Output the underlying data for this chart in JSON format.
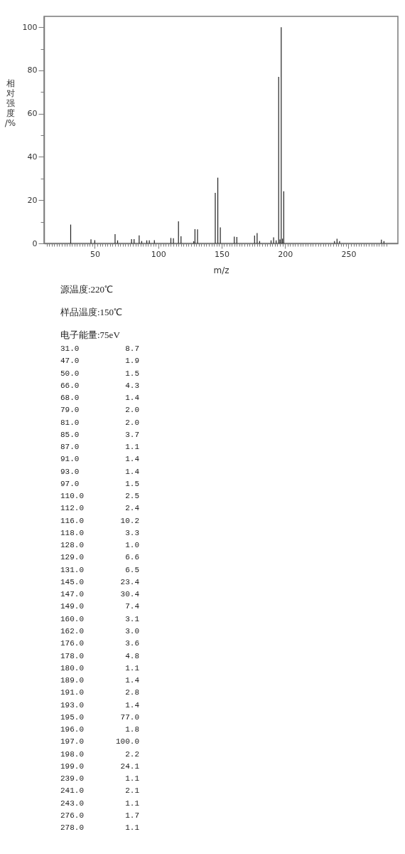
{
  "chart_data": [
    {
      "type": "bar",
      "xlabel": "m/z",
      "ylabel": "相对强度/%",
      "color": "#222222",
      "x": [
        31,
        47,
        50,
        66,
        68,
        79,
        81,
        85,
        87,
        91,
        93,
        97,
        110,
        112,
        116,
        118,
        128,
        129,
        131,
        145,
        147,
        149,
        160,
        162,
        176,
        178,
        180,
        189,
        191,
        193,
        195,
        196,
        197,
        198,
        199,
        239,
        241,
        243,
        276,
        278
      ],
      "values": [
        8.7,
        1.9,
        1.5,
        4.3,
        1.4,
        2.0,
        2.0,
        3.7,
        1.1,
        1.4,
        1.4,
        1.5,
        2.5,
        2.4,
        10.2,
        3.3,
        1.0,
        6.6,
        6.5,
        23.4,
        30.4,
        7.4,
        3.1,
        3.0,
        3.6,
        4.8,
        1.1,
        1.4,
        2.8,
        1.4,
        77.0,
        1.8,
        100.0,
        2.2,
        24.1,
        1.1,
        2.1,
        1.1,
        1.7,
        1.1
      ],
      "xlim": [
        10,
        289
      ],
      "ylim": [
        0,
        105
      ],
      "xticks": [
        {
          "value": 12,
          "label": null
        },
        {
          "value": 14,
          "label": null
        },
        {
          "value": 16,
          "label": null
        },
        {
          "value": 18,
          "label": null
        },
        {
          "value": 20,
          "label": null
        },
        {
          "value": 22,
          "label": null
        },
        {
          "value": 24,
          "label": null
        },
        {
          "value": 26,
          "label": null
        },
        {
          "value": 28,
          "label": null
        },
        {
          "value": 30,
          "label": null
        },
        {
          "value": 32,
          "label": null
        },
        {
          "value": 34,
          "label": null
        },
        {
          "value": 36,
          "label": null
        },
        {
          "value": 38,
          "label": null
        },
        {
          "value": 40,
          "label": null
        },
        {
          "value": 42,
          "label": null
        },
        {
          "value": 44,
          "label": null
        },
        {
          "value": 46,
          "label": null
        },
        {
          "value": 48,
          "label": null
        },
        50,
        {
          "value": 52,
          "label": null
        },
        {
          "value": 54,
          "label": null
        },
        {
          "value": 56,
          "label": null
        },
        {
          "value": 58,
          "label": null
        },
        {
          "value": 60,
          "label": null
        },
        {
          "value": 62,
          "label": null
        },
        {
          "value": 64,
          "label": null
        },
        {
          "value": 66,
          "label": null
        },
        {
          "value": 68,
          "label": null
        },
        {
          "value": 70,
          "label": null
        },
        {
          "value": 72,
          "label": null
        },
        {
          "value": 74,
          "label": null
        },
        {
          "value": 76,
          "label": null
        },
        {
          "value": 78,
          "label": null
        },
        {
          "value": 80,
          "label": null
        },
        {
          "value": 82,
          "label": null
        },
        {
          "value": 84,
          "label": null
        },
        {
          "value": 86,
          "label": null
        },
        {
          "value": 88,
          "label": null
        },
        {
          "value": 90,
          "label": null
        },
        {
          "value": 92,
          "label": null
        },
        {
          "value": 94,
          "label": null
        },
        {
          "value": 96,
          "label": null
        },
        {
          "value": 98,
          "label": null
        },
        100,
        {
          "value": 102,
          "label": null
        },
        {
          "value": 104,
          "label": null
        },
        {
          "value": 106,
          "label": null
        },
        {
          "value": 108,
          "label": null
        },
        {
          "value": 110,
          "label": null
        },
        {
          "value": 112,
          "label": null
        },
        {
          "value": 114,
          "label": null
        },
        {
          "value": 116,
          "label": null
        },
        {
          "value": 118,
          "label": null
        },
        {
          "value": 120,
          "label": null
        },
        {
          "value": 122,
          "label": null
        },
        {
          "value": 124,
          "label": null
        },
        {
          "value": 126,
          "label": null
        },
        {
          "value": 128,
          "label": null
        },
        {
          "value": 130,
          "label": null
        },
        {
          "value": 132,
          "label": null
        },
        {
          "value": 134,
          "label": null
        },
        {
          "value": 136,
          "label": null
        },
        {
          "value": 138,
          "label": null
        },
        {
          "value": 140,
          "label": null
        },
        {
          "value": 142,
          "label": null
        },
        {
          "value": 144,
          "label": null
        },
        {
          "value": 146,
          "label": null
        },
        {
          "value": 148,
          "label": null
        },
        150,
        {
          "value": 152,
          "label": null
        },
        {
          "value": 154,
          "label": null
        },
        {
          "value": 156,
          "label": null
        },
        {
          "value": 158,
          "label": null
        },
        {
          "value": 160,
          "label": null
        },
        {
          "value": 162,
          "label": null
        },
        {
          "value": 164,
          "label": null
        },
        {
          "value": 166,
          "label": null
        },
        {
          "value": 168,
          "label": null
        },
        {
          "value": 170,
          "label": null
        },
        {
          "value": 172,
          "label": null
        },
        {
          "value": 174,
          "label": null
        },
        {
          "value": 176,
          "label": null
        },
        {
          "value": 178,
          "label": null
        },
        {
          "value": 180,
          "label": null
        },
        {
          "value": 182,
          "label": null
        },
        {
          "value": 184,
          "label": null
        },
        {
          "value": 186,
          "label": null
        },
        {
          "value": 188,
          "label": null
        },
        {
          "value": 190,
          "label": null
        },
        {
          "value": 192,
          "label": null
        },
        {
          "value": 194,
          "label": null
        },
        {
          "value": 196,
          "label": null
        },
        {
          "value": 198,
          "label": null
        },
        200,
        {
          "value": 202,
          "label": null
        },
        {
          "value": 204,
          "label": null
        },
        {
          "value": 206,
          "label": null
        },
        {
          "value": 208,
          "label": null
        },
        {
          "value": 210,
          "label": null
        },
        {
          "value": 212,
          "label": null
        },
        {
          "value": 214,
          "label": null
        },
        {
          "value": 216,
          "label": null
        },
        {
          "value": 218,
          "label": null
        },
        {
          "value": 220,
          "label": null
        },
        {
          "value": 222,
          "label": null
        },
        {
          "value": 224,
          "label": null
        },
        {
          "value": 226,
          "label": null
        },
        {
          "value": 228,
          "label": null
        },
        {
          "value": 230,
          "label": null
        },
        {
          "value": 232,
          "label": null
        },
        {
          "value": 234,
          "label": null
        },
        {
          "value": 236,
          "label": null
        },
        {
          "value": 238,
          "label": null
        },
        {
          "value": 240,
          "label": null
        },
        {
          "value": 242,
          "label": null
        },
        {
          "value": 244,
          "label": null
        },
        {
          "value": 246,
          "label": null
        },
        {
          "value": 248,
          "label": null
        },
        250,
        {
          "value": 252,
          "label": null
        },
        {
          "value": 254,
          "label": null
        },
        {
          "value": 256,
          "label": null
        },
        {
          "value": 258,
          "label": null
        },
        {
          "value": 260,
          "label": null
        },
        {
          "value": 262,
          "label": null
        },
        {
          "value": 264,
          "label": null
        },
        {
          "value": 266,
          "label": null
        },
        {
          "value": 268,
          "label": null
        },
        {
          "value": 270,
          "label": null
        },
        {
          "value": 272,
          "label": null
        },
        {
          "value": 274,
          "label": null
        },
        {
          "value": 276,
          "label": null
        },
        {
          "value": 278,
          "label": null
        },
        {
          "value": 280,
          "label": null
        }
      ],
      "yticks": [
        0,
        {
          "value": 10,
          "label": null
        },
        20,
        {
          "value": 30,
          "label": null
        },
        40,
        {
          "value": 50,
          "label": null
        },
        60,
        {
          "value": 70,
          "label": null
        },
        80,
        {
          "value": 90,
          "label": null
        },
        100
      ],
      "grid": false,
      "annotations": [
        "源温度:220℃",
        "样品温度:150℃",
        "电子能量:75eV"
      ]
    },
    {
      "type": "other",
      "annotations": [
        "31.0",
        "8.7",
        "47.0",
        "1.9",
        "50.0",
        "1.5",
        "66.0",
        "4.3",
        "68.0",
        "1.4",
        "79.0",
        "2.0",
        "81.0",
        "2.0",
        "85.0",
        "3.7",
        "87.0",
        "1.1",
        "91.0",
        "1.4",
        "93.0",
        "1.4",
        "97.0",
        "1.5",
        "110.0",
        "2.5",
        "112.0",
        "2.4",
        "116.0",
        "10.2",
        "118.0",
        "3.3",
        "128.0",
        "1.0",
        "129.0",
        "6.6",
        "131.0",
        "6.5",
        "145.0",
        "23.4",
        "147.0",
        "30.4",
        "149.0",
        "7.4",
        "160.0",
        "3.1",
        "162.0",
        "3.0",
        "176.0",
        "3.6",
        "178.0",
        "4.8",
        "180.0",
        "1.1",
        "189.0",
        "1.4",
        "191.0",
        "2.8",
        "193.0",
        "1.4",
        "195.0",
        "77.0",
        "196.0",
        "1.8",
        "197.0",
        "100.0",
        "198.0",
        "2.2",
        "199.0",
        "24.1",
        "239.0",
        "1.1",
        "241.0",
        "2.1",
        "243.0",
        "1.1",
        "276.0",
        "1.7",
        "278.0",
        "1.1"
      ]
    }
  ]
}
